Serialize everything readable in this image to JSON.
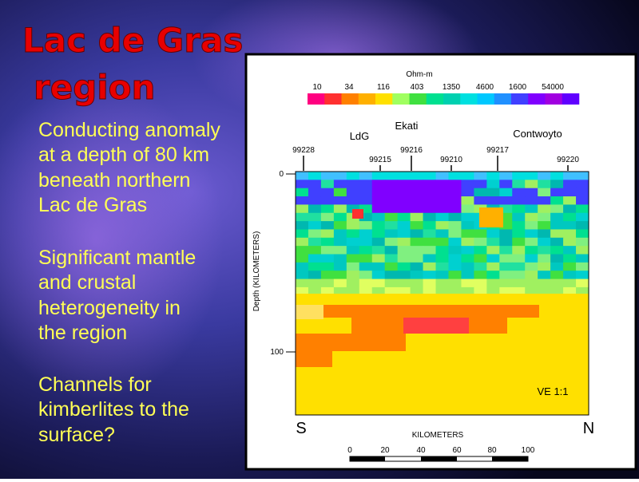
{
  "slide": {
    "title": [
      "Lac de Gras",
      "region"
    ],
    "bullets": [
      [
        "Conducting anomaly",
        "at a depth of 80 km",
        "beneath northern",
        "Lac de Gras"
      ],
      [
        "Significant mantle",
        "and crustal",
        "heterogeneity in",
        "the region"
      ],
      [
        "Channels for",
        "kimberlites to the",
        "surface?"
      ]
    ]
  },
  "figure": {
    "colorbar_title": "Ohm-m",
    "colorbar_labels": [
      "10",
      "34",
      "116",
      "403",
      "1350",
      "4600",
      "1600",
      "54000"
    ],
    "sites": [
      "Ekati",
      "LdG",
      "Contwoyto"
    ],
    "stations": [
      "99228",
      "99215",
      "99216",
      "99210",
      "99217",
      "99220"
    ],
    "depth_label": "Depth (KILOMETERS)",
    "depth_ticks": [
      "0",
      "100"
    ],
    "left_end": "S",
    "right_end": "N",
    "ve": "VE 1:1",
    "distance_label": "KILOMETERS",
    "scale_labels": [
      "0",
      "20",
      "40",
      "60",
      "80",
      "100"
    ]
  }
}
